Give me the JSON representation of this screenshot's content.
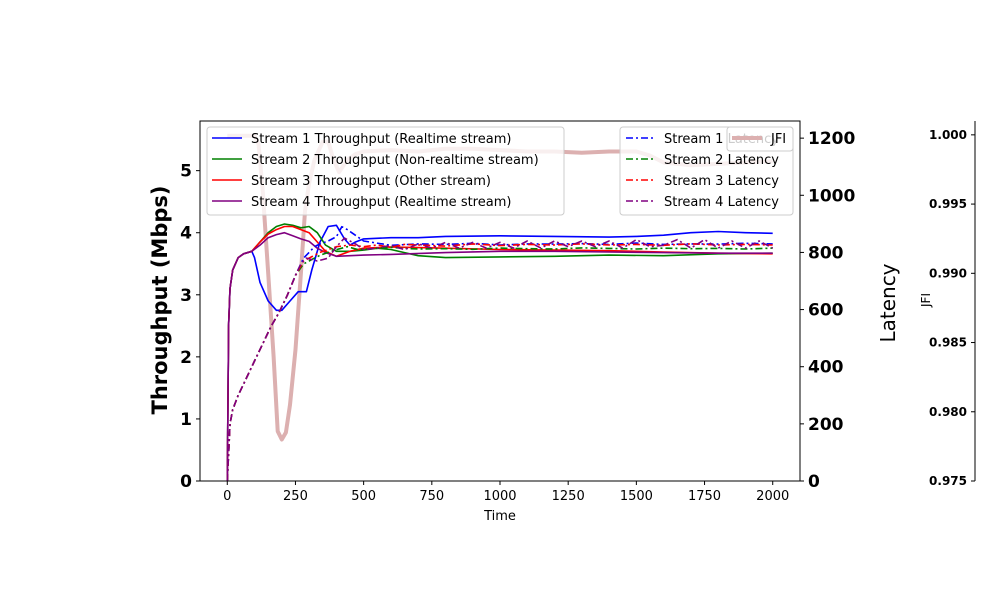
{
  "chart_data": {
    "type": "line",
    "xlabel": "Time",
    "ylabel_left": "Throughput (Mbps)",
    "ylabel_right": "Latency",
    "ylabel_far_right": "JFI",
    "xlim": [
      -100,
      2100
    ],
    "ylim_left": [
      0,
      5.8
    ],
    "ylim_right": [
      0,
      1260
    ],
    "ylim_far_right": [
      0.975,
      1.001
    ],
    "x_ticks": [
      0,
      250,
      500,
      750,
      1000,
      1250,
      1500,
      1750,
      2000
    ],
    "x_tick_labels": [
      "0",
      "250",
      "500",
      "750",
      "1000",
      "1250",
      "1500",
      "1750",
      "2000"
    ],
    "left_ticks": [
      0,
      1,
      2,
      3,
      4,
      5
    ],
    "left_tick_labels": [
      "0",
      "1",
      "2",
      "3",
      "4",
      "5"
    ],
    "right_ticks": [
      0,
      200,
      400,
      600,
      800,
      1000,
      1200
    ],
    "right_tick_labels": [
      "0",
      "200",
      "400",
      "600",
      "800",
      "1000",
      "1200"
    ],
    "far_right_ticks": [
      0.975,
      0.98,
      0.985,
      0.99,
      0.995,
      1.0
    ],
    "far_right_tick_labels": [
      "0.975",
      "0.980",
      "0.985",
      "0.990",
      "0.995",
      "1.000"
    ],
    "legend_throughput": [
      "Stream 1 Throughput (Realtime stream)",
      "Stream 2 Throughput (Non-realtime stream)",
      "Stream 3 Throughput (Other stream)",
      "Stream 4 Throughput (Realtime stream)"
    ],
    "legend_latency": [
      "Stream 1 Latency",
      "Stream 2 Latency",
      "Stream 3 Latency",
      "Stream 4 Latency"
    ],
    "legend_jfi": "JFI",
    "colors": {
      "stream1": "#0000ff",
      "stream2": "#008000",
      "stream3": "#ff0000",
      "stream4": "#800080",
      "jfi": "#dcb0b0"
    },
    "series_throughput": [
      {
        "name": "Stream 1 Throughput (Realtime stream)",
        "color": "#0000ff",
        "x": [
          0,
          5,
          10,
          20,
          40,
          60,
          90,
          100,
          120,
          150,
          180,
          200,
          230,
          260,
          290,
          310,
          340,
          370,
          400,
          430,
          450,
          470,
          500,
          600,
          700,
          800,
          1000,
          1200,
          1400,
          1500,
          1600,
          1700,
          1800,
          1900,
          2000
        ],
        "y": [
          0,
          2.5,
          3.1,
          3.4,
          3.6,
          3.66,
          3.7,
          3.6,
          3.2,
          2.9,
          2.75,
          2.75,
          2.9,
          3.05,
          3.05,
          3.4,
          3.85,
          4.1,
          4.12,
          3.9,
          3.8,
          3.85,
          3.9,
          3.92,
          3.92,
          3.94,
          3.95,
          3.94,
          3.93,
          3.94,
          3.96,
          4.0,
          4.02,
          4.0,
          3.99
        ]
      },
      {
        "name": "Stream 2 Throughput (Non-realtime stream)",
        "color": "#008000",
        "x": [
          0,
          5,
          10,
          20,
          40,
          60,
          90,
          120,
          150,
          180,
          210,
          240,
          270,
          300,
          330,
          360,
          400,
          450,
          500,
          550,
          600,
          650,
          700,
          800,
          1000,
          1200,
          1400,
          1600,
          1800,
          2000
        ],
        "y": [
          0,
          2.5,
          3.1,
          3.4,
          3.6,
          3.66,
          3.7,
          3.85,
          4.0,
          4.1,
          4.14,
          4.12,
          4.08,
          4.1,
          4.0,
          3.8,
          3.7,
          3.7,
          3.72,
          3.75,
          3.73,
          3.68,
          3.63,
          3.6,
          3.61,
          3.62,
          3.64,
          3.63,
          3.66,
          3.67
        ]
      },
      {
        "name": "Stream 3 Throughput (Other stream)",
        "color": "#ff0000",
        "x": [
          0,
          5,
          10,
          20,
          40,
          60,
          90,
          120,
          150,
          180,
          210,
          240,
          270,
          300,
          330,
          360,
          400,
          450,
          500,
          600,
          700,
          800,
          1000,
          1200,
          1400,
          1600,
          1800,
          2000
        ],
        "y": [
          0,
          2.5,
          3.1,
          3.4,
          3.6,
          3.66,
          3.7,
          3.85,
          3.98,
          4.05,
          4.1,
          4.1,
          4.05,
          4.0,
          3.85,
          3.7,
          3.62,
          3.7,
          3.75,
          3.77,
          3.76,
          3.75,
          3.73,
          3.72,
          3.71,
          3.69,
          3.67,
          3.66
        ]
      },
      {
        "name": "Stream 4 Throughput (Realtime stream)",
        "color": "#800080",
        "x": [
          0,
          5,
          10,
          20,
          40,
          60,
          90,
          120,
          150,
          180,
          210,
          240,
          270,
          300,
          330,
          360,
          400,
          450,
          500,
          600,
          800,
          1000,
          1200,
          1400,
          1600,
          1800,
          2000
        ],
        "y": [
          0,
          2.5,
          3.1,
          3.4,
          3.6,
          3.66,
          3.7,
          3.8,
          3.92,
          3.97,
          4.0,
          3.95,
          3.9,
          3.86,
          3.75,
          3.68,
          3.62,
          3.63,
          3.64,
          3.65,
          3.68,
          3.7,
          3.7,
          3.69,
          3.68,
          3.67,
          3.67
        ]
      }
    ],
    "series_latency": [
      {
        "name": "Stream 1 Latency",
        "color": "#0000ff",
        "x": [
          0,
          10,
          20,
          40,
          70,
          100,
          130,
          160,
          190,
          220,
          250,
          280,
          300,
          320,
          340,
          370,
          400,
          420,
          440,
          470,
          500,
          600,
          700,
          800,
          900,
          1000,
          1100,
          1200,
          1300,
          1400,
          1500,
          1600,
          1700,
          1800,
          1900,
          2000
        ],
        "y": [
          0,
          200,
          250,
          300,
          360,
          420,
          480,
          540,
          590,
          650,
          720,
          780,
          800,
          820,
          830,
          840,
          855,
          890,
          880,
          860,
          840,
          825,
          830,
          828,
          832,
          826,
          830,
          829,
          831,
          828,
          833,
          828,
          830,
          829,
          832,
          830
        ]
      },
      {
        "name": "Stream 2 Latency",
        "color": "#008000",
        "x": [
          0,
          10,
          20,
          40,
          70,
          100,
          130,
          160,
          190,
          220,
          250,
          280,
          300,
          320,
          340,
          370,
          400,
          440,
          480,
          520,
          560,
          600,
          650,
          700,
          800,
          900,
          1000,
          1100,
          1200,
          1300,
          1400,
          1500,
          1600,
          1700,
          1800,
          1900,
          2000
        ],
        "y": [
          0,
          200,
          250,
          300,
          360,
          420,
          480,
          540,
          590,
          650,
          720,
          760,
          770,
          780,
          790,
          800,
          810,
          820,
          810,
          812,
          815,
          818,
          814,
          812,
          813,
          811,
          815,
          813,
          812,
          816,
          814,
          812,
          815,
          813,
          814,
          812,
          815
        ]
      },
      {
        "name": "Stream 3 Latency",
        "color": "#ff0000",
        "x": [
          0,
          10,
          20,
          40,
          70,
          100,
          130,
          160,
          190,
          220,
          250,
          280,
          300,
          320,
          340,
          370,
          400,
          450,
          500,
          550,
          600,
          650,
          700,
          800,
          900,
          1000,
          1100,
          1200,
          1300,
          1400,
          1500,
          1600,
          1700,
          1800,
          1900,
          2000
        ],
        "y": [
          0,
          200,
          250,
          300,
          360,
          420,
          480,
          540,
          590,
          650,
          720,
          770,
          780,
          790,
          800,
          810,
          820,
          826,
          820,
          826,
          818,
          828,
          826,
          822,
          830,
          824,
          828,
          826,
          830,
          826,
          828,
          825,
          830,
          826,
          828,
          826
        ]
      },
      {
        "name": "Stream 4 Latency",
        "color": "#800080",
        "x": [
          0,
          10,
          20,
          40,
          70,
          100,
          130,
          160,
          190,
          220,
          250,
          270,
          290,
          310,
          330,
          350,
          370,
          400,
          430,
          470,
          500,
          550,
          600,
          650,
          700,
          750,
          800,
          850,
          900,
          950,
          1000,
          1050,
          1100,
          1150,
          1200,
          1250,
          1300,
          1350,
          1400,
          1450,
          1500,
          1550,
          1600,
          1650,
          1700,
          1750,
          1800,
          1850,
          1900,
          1950,
          2000
        ],
        "y": [
          0,
          200,
          250,
          300,
          360,
          420,
          480,
          540,
          590,
          650,
          720,
          760,
          780,
          775,
          770,
          775,
          780,
          820,
          850,
          830,
          810,
          815,
          825,
          810,
          830,
          815,
          835,
          815,
          835,
          815,
          835,
          815,
          840,
          815,
          840,
          820,
          840,
          820,
          840,
          815,
          845,
          820,
          825,
          845,
          815,
          845,
          815,
          840,
          815,
          840,
          815
        ]
      }
    ],
    "series_jfi": {
      "name": "JFI",
      "color": "#dcb0b0",
      "x": [
        0,
        60,
        100,
        115,
        130,
        150,
        170,
        185,
        200,
        215,
        230,
        250,
        270,
        285,
        300,
        320,
        350,
        370,
        390,
        410,
        440,
        470,
        500,
        600,
        700,
        800,
        900,
        1000,
        1100,
        1200,
        1300,
        1400,
        1500,
        1550,
        1600,
        1700,
        1800,
        1900,
        2000
      ],
      "y": [
        0.99993,
        0.99993,
        0.99993,
        0.9993,
        0.996,
        0.99,
        0.984,
        0.9786,
        0.978,
        0.9785,
        0.9805,
        0.9845,
        0.99,
        0.9945,
        0.9965,
        0.9982,
        0.9995,
        0.9995,
        0.9982,
        0.9973,
        0.9982,
        0.9986,
        0.9988,
        0.9989,
        0.9988,
        0.999,
        0.999,
        0.9989,
        0.9988,
        0.9988,
        0.9987,
        0.9988,
        0.9988,
        0.9985,
        0.998,
        0.9978,
        0.9979,
        0.998,
        0.9981
      ]
    }
  }
}
